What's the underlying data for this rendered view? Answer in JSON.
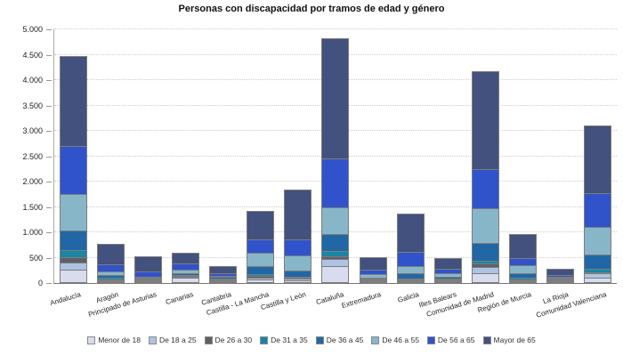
{
  "chart_data": {
    "type": "bar",
    "stacked": true,
    "title": "Personas con discapacidad por tramos de edad y género",
    "xlabel": "",
    "ylabel": "",
    "ylim": [
      0,
      5000
    ],
    "grid": "horizontal-dotted",
    "legend_position": "bottom",
    "yticks": [
      {
        "value": 0,
        "label": "0"
      },
      {
        "value": 500,
        "label": "500"
      },
      {
        "value": 1000,
        "label": "1.000"
      },
      {
        "value": 1500,
        "label": "1.500"
      },
      {
        "value": 2000,
        "label": "2.000"
      },
      {
        "value": 2500,
        "label": "2.500"
      },
      {
        "value": 3000,
        "label": "3.000"
      },
      {
        "value": 3500,
        "label": "3.500"
      },
      {
        "value": 4000,
        "label": "4.000"
      },
      {
        "value": 4500,
        "label": "4.500"
      },
      {
        "value": 5000,
        "label": "5.000"
      }
    ],
    "categories": [
      "Andalucía",
      "Aragón",
      "Principado de Asturias",
      "Canarias",
      "Cantabria",
      "Castilla - La Mancha",
      "Castilla y León",
      "Cataluña",
      "Extremadura",
      "Galicia",
      "Illes Balears",
      "Comunidad de Madrid",
      "Región de Murcia",
      "La Rioja",
      "Comunidad Valenciana"
    ],
    "series": [
      {
        "name": "Menor de 18",
        "color": "#d8dcee",
        "values": [
          260,
          20,
          15,
          100,
          10,
          65,
          55,
          340,
          20,
          30,
          20,
          200,
          35,
          8,
          100
        ]
      },
      {
        "name": "De 18 a 25",
        "color": "#aec3e2",
        "values": [
          160,
          30,
          25,
          30,
          20,
          60,
          45,
          160,
          25,
          25,
          25,
          140,
          35,
          12,
          110
        ]
      },
      {
        "name": "De 26 a 30",
        "color": "#5e6066",
        "values": [
          130,
          15,
          10,
          10,
          10,
          45,
          40,
          60,
          15,
          15,
          10,
          90,
          20,
          5,
          20
        ]
      },
      {
        "name": "De 31 a 35",
        "color": "#1886a4",
        "values": [
          150,
          45,
          20,
          20,
          15,
          60,
          40,
          130,
          20,
          25,
          20,
          70,
          45,
          10,
          90
        ]
      },
      {
        "name": "De 36 a 45",
        "color": "#2267a5",
        "values": [
          400,
          70,
          25,
          55,
          45,
          170,
          140,
          350,
          25,
          115,
          50,
          360,
          105,
          15,
          290
        ]
      },
      {
        "name": "De 46 a 55",
        "color": "#88b6c9",
        "values": [
          750,
          100,
          25,
          85,
          40,
          290,
          310,
          540,
          85,
          160,
          85,
          700,
          190,
          15,
          570
        ]
      },
      {
        "name": "De 56 a 65",
        "color": "#3053cb",
        "values": [
          950,
          150,
          120,
          150,
          80,
          280,
          330,
          990,
          110,
          310,
          110,
          800,
          160,
          45,
          680
        ]
      },
      {
        "name": "Mayor de 65",
        "color": "#42517d",
        "values": [
          1800,
          420,
          320,
          230,
          150,
          580,
          1000,
          2380,
          270,
          760,
          230,
          1940,
          480,
          150,
          1360
        ]
      }
    ],
    "totals": [
      4600,
      850,
      560,
      680,
      370,
      1550,
      1960,
      4950,
      570,
      1440,
      550,
      4300,
      1070,
      260,
      3220
    ]
  }
}
